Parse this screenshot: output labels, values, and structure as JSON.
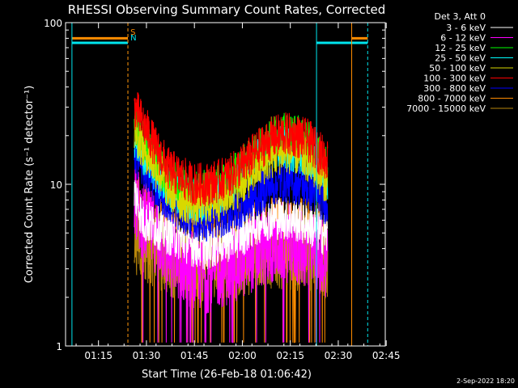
{
  "chart_data": {
    "type": "line",
    "title": "RHESSI Observing Summary Count Rates, Corrected",
    "xlabel": "Start Time (26-Feb-18 01:06:42)",
    "ylabel": "Corrected Count Rate (s⁻¹ detector⁻¹)",
    "x_ticks": [
      "01:15",
      "01:30",
      "01:45",
      "02:00",
      "02:15",
      "02:30",
      "02:45"
    ],
    "y_ticks": [
      "1",
      "10",
      "100"
    ],
    "yscale": "log",
    "xlim_minutes": [
      -2,
      98
    ],
    "ylim": [
      1,
      100
    ],
    "legend_title": "Det 3, Att 0",
    "legend_placement": "right",
    "footer_date": "2-Sep-2022 18:20",
    "flags": [
      {
        "label": "S",
        "color": "#ff8c00"
      },
      {
        "label": "N",
        "color": "#00e5ee"
      }
    ],
    "flag_bars": [
      {
        "color": "#ff8c00",
        "value": 80,
        "x_start": 0,
        "x_end": 17.5
      },
      {
        "color": "#00e5ee",
        "value": 75,
        "x_start": 0,
        "x_end": 17.5
      },
      {
        "color": "#00e5ee",
        "value": 75,
        "x_start": 76.5,
        "x_end": 92.5
      },
      {
        "color": "#ff8c00",
        "value": 80,
        "x_start": 87.5,
        "x_end": 92.5
      }
    ],
    "vlines": [
      {
        "x": 0,
        "color": "#00e5ee",
        "style": "solid"
      },
      {
        "x": 17.5,
        "color": "#00e5ee",
        "style": "dashed"
      },
      {
        "x": 17.5,
        "color": "#ff8c00",
        "style": "dashed"
      },
      {
        "x": 76.5,
        "color": "#00e5ee",
        "style": "solid"
      },
      {
        "x": 87.5,
        "color": "#ff8c00",
        "style": "solid"
      },
      {
        "x": 92.5,
        "color": "#00e5ee",
        "style": "dashed"
      }
    ],
    "series": [
      {
        "name": "3 - 6 keV",
        "color": "#ffffff",
        "x": [
          19.5,
          22,
          26,
          30,
          34,
          38,
          42,
          46,
          50,
          54,
          58,
          62,
          66,
          70,
          74,
          77,
          80
        ],
        "y": [
          9,
          6,
          5.5,
          5,
          4.6,
          4.2,
          4,
          4.3,
          4.6,
          5,
          5.8,
          6.2,
          6.2,
          6,
          5.6,
          5.2,
          4.8
        ]
      },
      {
        "name": "6 - 12 keV",
        "color": "#ff00ff",
        "x": [
          19.5,
          22,
          26,
          30,
          34,
          38,
          42,
          46,
          50,
          54,
          58,
          62,
          66,
          70,
          74,
          77,
          80
        ],
        "y": [
          8,
          6,
          5,
          4,
          3.3,
          3,
          2.8,
          3,
          3.2,
          3.5,
          4,
          4.2,
          4.4,
          4.2,
          4,
          3.8,
          3.5
        ]
      },
      {
        "name": "12 - 25 keV",
        "color": "#00ff00",
        "x": [
          19.5,
          22,
          26,
          30,
          34,
          38,
          42,
          46,
          50,
          54,
          58,
          62,
          66,
          70,
          74,
          77,
          80
        ],
        "y": [
          25,
          19,
          14,
          11,
          9.5,
          9,
          9,
          10,
          11,
          13,
          16,
          19,
          21,
          20,
          18,
          15,
          12
        ]
      },
      {
        "name": "25 - 50 keV",
        "color": "#00ffff",
        "x": [
          19.5,
          22,
          26,
          30,
          34,
          38,
          42,
          46,
          50,
          54,
          58,
          62,
          66,
          70,
          74,
          77,
          80
        ],
        "y": [
          20,
          16,
          12,
          9.5,
          8.5,
          8,
          8,
          9,
          10,
          12,
          14,
          16,
          17,
          16,
          15,
          13,
          11
        ]
      },
      {
        "name": "50 - 100 keV",
        "color": "#d8d800",
        "x": [
          19.5,
          22,
          26,
          30,
          34,
          38,
          42,
          46,
          50,
          54,
          58,
          62,
          66,
          70,
          74,
          77,
          80
        ],
        "y": [
          22,
          17,
          13,
          9.5,
          8,
          7.5,
          7.5,
          8,
          9,
          10.5,
          12.5,
          14.5,
          16,
          15.5,
          14,
          12,
          10
        ]
      },
      {
        "name": "100 - 300 keV",
        "color": "#ff0000",
        "x": [
          19.5,
          22,
          26,
          30,
          34,
          38,
          42,
          46,
          50,
          54,
          58,
          62,
          66,
          70,
          74,
          77,
          80
        ],
        "y": [
          30,
          24,
          17,
          12.5,
          11,
          10,
          10,
          10.5,
          11.5,
          13.5,
          16,
          19,
          20.5,
          20,
          18.5,
          16,
          14
        ]
      },
      {
        "name": "300 - 800 keV",
        "color": "#0000ff",
        "x": [
          19.5,
          22,
          26,
          30,
          34,
          38,
          42,
          46,
          50,
          54,
          58,
          62,
          66,
          70,
          74,
          77,
          80
        ],
        "y": [
          16,
          13,
          10,
          8,
          6.8,
          6.2,
          6,
          6.3,
          6.8,
          7.5,
          8.5,
          9.8,
          10.5,
          10.2,
          9.5,
          8.5,
          7.5
        ]
      },
      {
        "name": "800 - 7000 keV",
        "color": "#ff8c00",
        "x": [
          19.5,
          22,
          26,
          30,
          34,
          38,
          42,
          46,
          50,
          54,
          58,
          62,
          66,
          70,
          74,
          77,
          80
        ],
        "y": [
          7,
          6,
          5.2,
          4.6,
          4.2,
          4,
          4,
          4.1,
          4.3,
          4.5,
          4.7,
          4.8,
          4.9,
          4.8,
          4.6,
          4.4,
          4.2
        ]
      },
      {
        "name": "7000 - 15000 keV",
        "color": "#b8860b",
        "x": [
          19.5,
          22,
          26,
          30,
          34,
          38,
          42,
          46,
          50,
          54,
          58,
          62,
          66,
          70,
          74,
          77,
          80
        ],
        "y": [
          5,
          4.5,
          4,
          3.6,
          3.4,
          3.3,
          3.3,
          3.4,
          3.5,
          3.6,
          3.8,
          3.9,
          4,
          3.9,
          3.8,
          3.6,
          3.4
        ]
      }
    ]
  }
}
